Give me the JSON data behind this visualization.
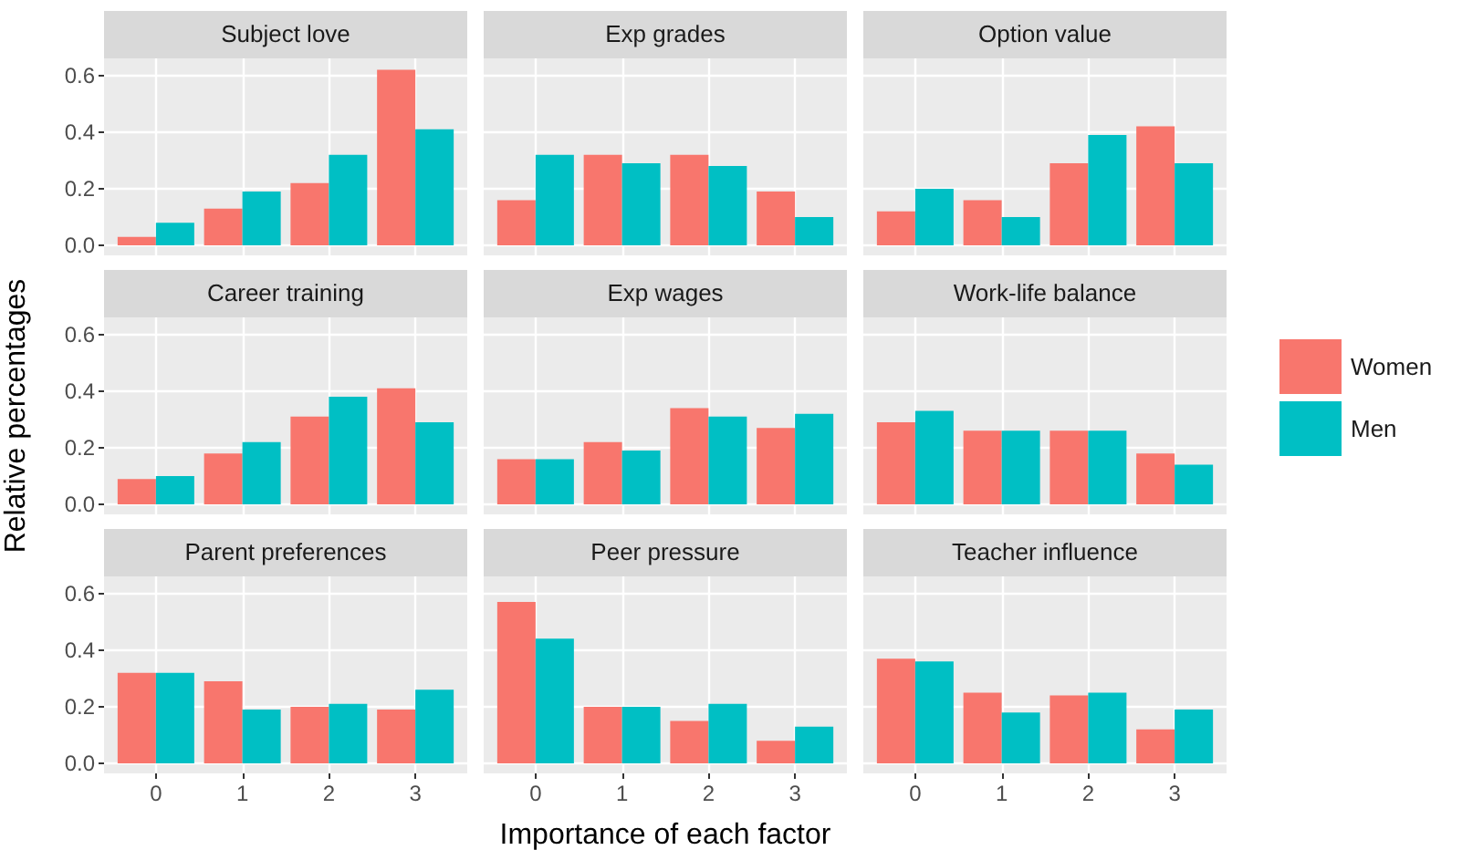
{
  "chart_data": [
    {
      "type": "bar",
      "title": "Subject love",
      "categories": [
        "0",
        "1",
        "2",
        "3"
      ],
      "series": [
        {
          "color": "#f8766d",
          "values": [
            0.03,
            0.13,
            0.22,
            0.62
          ]
        },
        {
          "color": "#00bfc4",
          "values": [
            0.08,
            0.19,
            0.32,
            0.41
          ]
        }
      ],
      "ylim": [
        -0.035,
        0.66
      ],
      "yticks": [
        {
          "value": 0,
          "label": "0.0"
        },
        {
          "value": 0.2,
          "label": "0.2"
        },
        {
          "value": 0.4,
          "label": "0.4"
        },
        {
          "value": 0.6,
          "label": "0.6"
        }
      ],
      "grid": true,
      "tick_labels": "y"
    },
    {
      "type": "bar",
      "title": "Exp grades",
      "categories": [
        "0",
        "1",
        "2",
        "3"
      ],
      "series": [
        {
          "color": "#f8766d",
          "values": [
            0.16,
            0.32,
            0.32,
            0.19
          ]
        },
        {
          "color": "#00bfc4",
          "values": [
            0.32,
            0.29,
            0.28,
            0.1
          ]
        }
      ],
      "ylim": [
        -0.035,
        0.66
      ],
      "yticks": [
        0,
        0.2,
        0.4,
        0.6
      ],
      "grid": true,
      "tick_labels": false
    },
    {
      "type": "bar",
      "title": "Option value",
      "categories": [
        "0",
        "1",
        "2",
        "3"
      ],
      "series": [
        {
          "color": "#f8766d",
          "values": [
            0.12,
            0.16,
            0.29,
            0.42
          ]
        },
        {
          "color": "#00bfc4",
          "values": [
            0.2,
            0.1,
            0.39,
            0.29
          ]
        }
      ],
      "ylim": [
        -0.035,
        0.66
      ],
      "yticks": [
        0,
        0.2,
        0.4,
        0.6
      ],
      "grid": true,
      "tick_labels": false
    },
    {
      "type": "bar",
      "title": "Career training",
      "ylabel": "Relative percentages",
      "categories": [
        "0",
        "1",
        "2",
        "3"
      ],
      "series": [
        {
          "color": "#f8766d",
          "values": [
            0.09,
            0.18,
            0.31,
            0.41
          ]
        },
        {
          "color": "#00bfc4",
          "values": [
            0.1,
            0.22,
            0.38,
            0.29
          ]
        }
      ],
      "ylim": [
        -0.035,
        0.66
      ],
      "yticks": [
        {
          "value": 0,
          "label": "0.0"
        },
        {
          "value": 0.2,
          "label": "0.2"
        },
        {
          "value": 0.4,
          "label": "0.4"
        },
        {
          "value": 0.6,
          "label": "0.6"
        }
      ],
      "grid": true,
      "tick_labels": "y"
    },
    {
      "type": "bar",
      "title": "Exp wages",
      "categories": [
        "0",
        "1",
        "2",
        "3"
      ],
      "series": [
        {
          "color": "#f8766d",
          "values": [
            0.16,
            0.22,
            0.34,
            0.27
          ]
        },
        {
          "color": "#00bfc4",
          "values": [
            0.16,
            0.19,
            0.31,
            0.32
          ]
        }
      ],
      "ylim": [
        -0.035,
        0.66
      ],
      "yticks": [
        0,
        0.2,
        0.4,
        0.6
      ],
      "grid": true,
      "tick_labels": false
    },
    {
      "type": "bar",
      "title": "Work-life balance",
      "legend": "right",
      "categories": [
        "0",
        "1",
        "2",
        "3"
      ],
      "series": [
        {
          "name": "Women",
          "color": "#f8766d",
          "values": [
            0.29,
            0.26,
            0.26,
            0.18
          ]
        },
        {
          "name": "Men",
          "color": "#00bfc4",
          "values": [
            0.33,
            0.26,
            0.26,
            0.14
          ]
        }
      ],
      "ylim": [
        -0.035,
        0.66
      ],
      "yticks": [
        0,
        0.2,
        0.4,
        0.6
      ],
      "grid": true,
      "tick_labels": false
    },
    {
      "type": "bar",
      "title": "Parent preferences",
      "categories": [
        "0",
        "1",
        "2",
        "3"
      ],
      "series": [
        {
          "color": "#f8766d",
          "values": [
            0.32,
            0.29,
            0.2,
            0.19
          ]
        },
        {
          "color": "#00bfc4",
          "values": [
            0.32,
            0.19,
            0.21,
            0.26
          ]
        }
      ],
      "ylim": [
        -0.035,
        0.66
      ],
      "yticks": [
        {
          "value": 0,
          "label": "0.0"
        },
        {
          "value": 0.2,
          "label": "0.2"
        },
        {
          "value": 0.4,
          "label": "0.4"
        },
        {
          "value": 0.6,
          "label": "0.6"
        }
      ],
      "grid": true
    },
    {
      "type": "bar",
      "title": "Peer pressure",
      "xlabel": "Importance of each factor",
      "categories": [
        "0",
        "1",
        "2",
        "3"
      ],
      "series": [
        {
          "color": "#f8766d",
          "values": [
            0.57,
            0.2,
            0.15,
            0.08
          ]
        },
        {
          "color": "#00bfc4",
          "values": [
            0.44,
            0.2,
            0.21,
            0.13
          ]
        }
      ],
      "ylim": [
        -0.035,
        0.66
      ],
      "yticks": [
        0,
        0.2,
        0.4,
        0.6
      ],
      "grid": true,
      "tick_labels": "x"
    },
    {
      "type": "bar",
      "title": "Teacher influence",
      "categories": [
        "0",
        "1",
        "2",
        "3"
      ],
      "series": [
        {
          "color": "#f8766d",
          "values": [
            0.37,
            0.25,
            0.24,
            0.12
          ]
        },
        {
          "color": "#00bfc4",
          "values": [
            0.36,
            0.18,
            0.25,
            0.19
          ]
        }
      ],
      "ylim": [
        -0.035,
        0.66
      ],
      "yticks": [
        0,
        0.2,
        0.4,
        0.6
      ],
      "grid": true,
      "tick_labels": "x"
    }
  ]
}
